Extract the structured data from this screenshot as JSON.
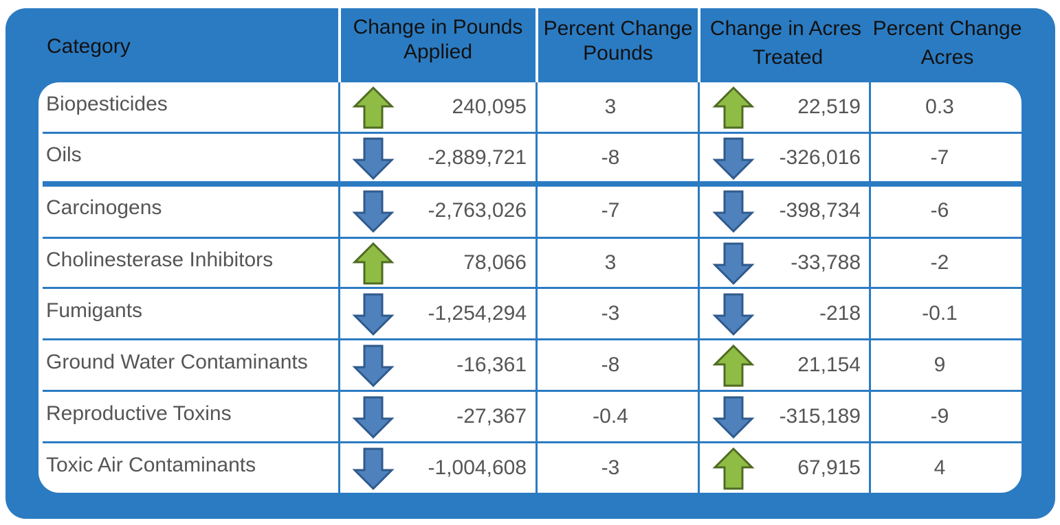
{
  "headers": {
    "category": "Category",
    "pounds_line1": "Change in Pounds",
    "pounds_line2": "Applied",
    "pct_pounds_line1": "Percent Change",
    "pct_pounds_line2": "Pounds",
    "acres_line1": "Change in Acres",
    "acres_line2": "Treated",
    "pct_acres_line1": "Percent Change",
    "pct_acres_line2": "Acres"
  },
  "colors": {
    "frame": "#2b7bc2",
    "up_arrow": "#8fbc45",
    "down_arrow": "#4f81bd"
  },
  "rows": [
    {
      "category": "Biopesticides",
      "pounds_dir": "up",
      "pounds": "240,095",
      "pct_pounds": "3",
      "acres_dir": "up",
      "acres": "22,519",
      "pct_acres": "0.3"
    },
    {
      "category": "Oils",
      "pounds_dir": "down",
      "pounds": "-2,889,721",
      "pct_pounds": "-8",
      "acres_dir": "down",
      "acres": "-326,016",
      "pct_acres": "-7"
    },
    {
      "category": "Carcinogens",
      "pounds_dir": "down",
      "pounds": "-2,763,026",
      "pct_pounds": "-7",
      "acres_dir": "down",
      "acres": "-398,734",
      "pct_acres": "-6"
    },
    {
      "category": "Cholinesterase Inhibitors",
      "pounds_dir": "up",
      "pounds": "78,066",
      "pct_pounds": "3",
      "acres_dir": "down",
      "acres": "-33,788",
      "pct_acres": "-2"
    },
    {
      "category": "Fumigants",
      "pounds_dir": "down",
      "pounds": "-1,254,294",
      "pct_pounds": "-3",
      "acres_dir": "down",
      "acres": "-218",
      "pct_acres": "-0.1"
    },
    {
      "category": "Ground Water Contaminants",
      "pounds_dir": "down",
      "pounds": "-16,361",
      "pct_pounds": "-8",
      "acres_dir": "up",
      "acres": "21,154",
      "pct_acres": "9"
    },
    {
      "category": "Reproductive Toxins",
      "pounds_dir": "down",
      "pounds": "-27,367",
      "pct_pounds": "-0.4",
      "acres_dir": "down",
      "acres": "-315,189",
      "pct_acres": "-9"
    },
    {
      "category": "Toxic Air Contaminants",
      "pounds_dir": "down",
      "pounds": "-1,004,608",
      "pct_pounds": "-3",
      "acres_dir": "up",
      "acres": "67,915",
      "pct_acres": "4"
    }
  ]
}
